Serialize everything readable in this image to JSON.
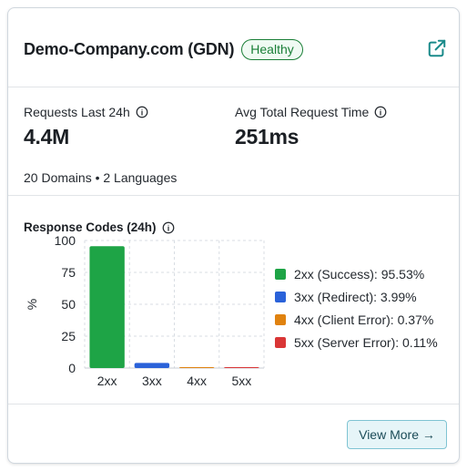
{
  "header": {
    "title": "Demo-Company.com (GDN)",
    "status": "Healthy",
    "external_link_icon": "external-link-icon"
  },
  "metrics": {
    "requests": {
      "label": "Requests Last 24h",
      "value": "4.4M"
    },
    "avg_time": {
      "label": "Avg Total Request Time",
      "value": "251ms"
    },
    "summary": "20 Domains • 2 Languages"
  },
  "response_codes": {
    "title": "Response Codes (24h)",
    "legend": [
      {
        "label": "2xx (Success): 95.53%",
        "color": "#1ea446"
      },
      {
        "label": "3xx (Redirect): 3.99%",
        "color": "#2a62d9"
      },
      {
        "label": "4xx (Client Error): 0.37%",
        "color": "#e0820f"
      },
      {
        "label": "5xx (Server Error): 0.11%",
        "color": "#d93636"
      }
    ]
  },
  "chart_data": {
    "type": "bar",
    "categories": [
      "2xx",
      "3xx",
      "4xx",
      "5xx"
    ],
    "values": [
      95.53,
      3.99,
      0.37,
      0.11
    ],
    "colors": [
      "#1ea446",
      "#2a62d9",
      "#e0820f",
      "#d93636"
    ],
    "ylabel": "%",
    "yticks": [
      0,
      25,
      50,
      75,
      100
    ],
    "ylim": [
      0,
      100
    ],
    "grid": true
  },
  "footer": {
    "view_more_label": "View More →"
  }
}
